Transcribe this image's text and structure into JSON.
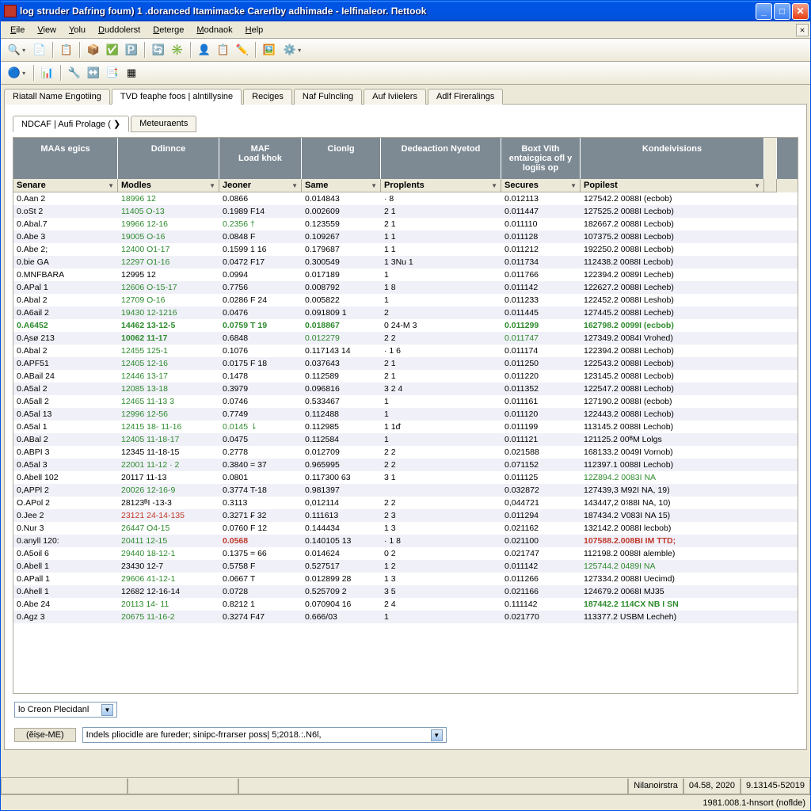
{
  "window": {
    "title": "log struder Dafring foum) 1 .doranced Itamimacke CarerIby adhimade - Ielfinaleor. Пеttоok"
  },
  "menu": {
    "items": [
      "Eile",
      "View",
      "Yolu",
      "Duddolerst",
      "Deterge",
      "Modnaok",
      "Help"
    ]
  },
  "toolbars": {
    "row1_icons": [
      "🔍",
      "📄",
      "·",
      "📋",
      "·",
      "📦",
      "✅",
      "🅿️",
      "·",
      "🔄",
      "✳️",
      "·",
      "👤",
      "📋",
      "✏️",
      "·",
      "🖼️",
      "⚙️"
    ],
    "row2_icons": [
      "🔵",
      "·",
      "📊",
      "·",
      "🔧",
      "↔️",
      "📑",
      "▦"
    ]
  },
  "tabs": {
    "main": [
      {
        "label": "Riatall Name Engotiing",
        "active": false
      },
      {
        "label": "TVD feaphe foos | alntillysine",
        "active": true
      },
      {
        "label": "Reciges",
        "active": false
      },
      {
        "label": "Naf Fulncling",
        "active": false
      },
      {
        "label": "Auf Iviielers",
        "active": false
      },
      {
        "label": "Adlf Fireralings",
        "active": false
      }
    ],
    "sub": [
      {
        "label": "NDCAF | Aufi Prolage  ( ❯",
        "active": true
      },
      {
        "label": "Meteuraents",
        "active": false
      }
    ]
  },
  "grid": {
    "group_headers": [
      "MAAs egics",
      "Ddinnce",
      "MAF\nLoad khok",
      "Cionlg",
      "Dedeaction Nyetod",
      "Boxt Vith entaicgica ofl y logiis op",
      "Kondeivisions"
    ],
    "col_headers": [
      "Senare",
      "Modles",
      "Jeoner",
      "Same",
      "Proplents",
      "Secures",
      "Popilest"
    ],
    "rows": [
      {
        "c": [
          "0.Aan 2",
          "18996 12",
          "0.0866",
          "0.014843",
          "·              8",
          "0.012113",
          "127542.2 0088I (ecbob)"
        ],
        "s": [
          "",
          "green",
          "",
          "",
          "",
          "",
          ""
        ]
      },
      {
        "c": [
          "0.oSt  2",
          "11405 O-13",
          "0.1989  F14",
          "0.002609",
          "2             1",
          "0.011447",
          "127525.2 0088I Lecbob)"
        ],
        "s": [
          "",
          "green",
          "",
          "",
          "",
          "",
          ""
        ]
      },
      {
        "c": [
          "0.Abal.7",
          "19966 12-16",
          "0.2356  †",
          "0.123559",
          "2             1",
          "0.011110",
          "182667.2 0088I Lecbob)"
        ],
        "s": [
          "",
          "green",
          "green",
          "",
          "",
          "",
          ""
        ]
      },
      {
        "c": [
          "0.Abe  3",
          "19005 O-16",
          "0.0848  F",
          "0.109267",
          "1             1",
          "0.011128",
          "107375.2 0088I Lecbob)"
        ],
        "s": [
          "",
          "green",
          "",
          "",
          "",
          "",
          ""
        ]
      },
      {
        "c": [
          "0.Abe  2;",
          "12400 O1-17",
          "0.1599  1 16",
          "0.179687",
          "1             1",
          "0.011212",
          "192250.2 0088I Lecbob)"
        ],
        "s": [
          "",
          "green",
          "",
          "",
          "",
          "",
          ""
        ]
      },
      {
        "c": [
          "0.bie  GA",
          "12297 O1-16",
          "0.0472  F17",
          "0.300549",
          "1    3Nu   1",
          "0.011734",
          "112438.2 0088I Lecbob)"
        ],
        "s": [
          "",
          "green",
          "",
          "",
          "",
          "",
          ""
        ]
      },
      {
        "c": [
          "0.MNFBARA",
          "12995 12",
          "0.0994",
          "0.017189",
          "              1",
          "0.011766",
          "122394.2 0089I Lecheb)"
        ],
        "s": [
          "",
          "",
          "",
          "",
          "",
          "",
          ""
        ]
      },
      {
        "c": [
          "0.APal 1",
          "12606 O-15-17",
          "0.7756",
          "0.008792",
          "            1  8",
          "0.011142",
          "122627.2 0088I Lecheb)"
        ],
        "s": [
          "",
          "green",
          "",
          "",
          "",
          "",
          ""
        ]
      },
      {
        "c": [
          "0.Abal 2",
          "12709 O-16",
          "0.0286  F 24",
          "0.005822",
          "              1",
          "0.011233",
          "122452.2 0088I Leshob)"
        ],
        "s": [
          "",
          "green",
          "",
          "",
          "",
          "",
          ""
        ]
      },
      {
        "c": [
          "0.A6ail 2",
          "19430 12-1216",
          "0.0476",
          "0.091809  1",
          "              2",
          "0.011445",
          "127445.2 0088I Lecheb)"
        ],
        "s": [
          "",
          "green",
          "",
          "",
          "",
          "",
          ""
        ]
      },
      {
        "c": [
          "0.A6452",
          "14462 13-12-5",
          "0.0759  T 19",
          "0.018867",
          "0    24-M  3",
          "0.011299",
          "162798.2 0099I (ecbob)"
        ],
        "s": [
          "bold green",
          "bold green",
          "bold green",
          "bold green",
          "",
          "bold green",
          "bold green"
        ]
      },
      {
        "c": [
          "0.Ąsø 213",
          "10062 11-17",
          "0.6848",
          "0.012279",
          "2             2",
          "0.011747",
          "127349.2 0084I Vrohed)"
        ],
        "s": [
          "",
          "bold green",
          "",
          "green",
          "",
          "green",
          ""
        ]
      },
      {
        "c": [
          "0.Abal 2",
          "12455 125-1",
          "0.1076",
          "0.117143  14",
          "·           1  6",
          "0.011174",
          "122394.2 0088I Lechob)"
        ],
        "s": [
          "",
          "green",
          "",
          "",
          "",
          "",
          ""
        ]
      },
      {
        "c": [
          "0.APF51",
          "12405 12-16",
          "0.0175  F 18",
          "0.037643",
          "2             1",
          "0.011250",
          "122543.2 0088I Lecbob)"
        ],
        "s": [
          "",
          "green",
          "",
          "",
          "",
          "",
          ""
        ]
      },
      {
        "c": [
          "0.ABail 24",
          "12446 13-17",
          "0.1478",
          "0.112589",
          "2             1",
          "0.011220",
          "123145.2 0088I Lecbob)"
        ],
        "s": [
          "",
          "green",
          "",
          "",
          "",
          "",
          ""
        ]
      },
      {
        "c": [
          "0.A5al 2",
          "12085 13-18",
          "0.3979",
          "0.096816",
          "3           2  4",
          "0.011352",
          "122547.2 0088I Lechob)"
        ],
        "s": [
          "",
          "green",
          "",
          "",
          "",
          "",
          ""
        ]
      },
      {
        "c": [
          "0.A5all 2",
          "12465 11-13  3",
          "0.0746",
          "0.533467",
          "              1",
          "0.011161",
          "127190.2 0088I (ecbob)"
        ],
        "s": [
          "",
          "green",
          "",
          "",
          "",
          "",
          ""
        ]
      },
      {
        "c": [
          "0.A5al 13",
          "12996 12-56",
          "0.7749",
          "0.112488",
          "              1",
          "0.011120",
          "122443.2 0088I Lechob)"
        ],
        "s": [
          "",
          "green",
          "",
          "",
          "",
          "",
          ""
        ]
      },
      {
        "c": [
          "0.A5al 1",
          "12415 18- 11-16",
          "0.0145  ⇂",
          "0.112985",
          "1          1ᵭ",
          "0.011199",
          "113145.2 0088I Lechob)"
        ],
        "s": [
          "",
          "green",
          "green",
          "",
          "",
          "",
          ""
        ]
      },
      {
        "c": [
          "0.ABal 2",
          "12405 11-18-17",
          "0.0475",
          "0.112584",
          "              1",
          "0.011121",
          "121125.2 00ᴮM Lolgs"
        ],
        "s": [
          "",
          "green",
          "",
          "",
          "",
          "",
          ""
        ]
      },
      {
        "c": [
          "0.ABPI 3",
          "12345 11-18-15",
          "0.2778",
          "0.012709",
          "2             2",
          "0.021588",
          "168133.2 0049I Vornob)"
        ],
        "s": [
          "",
          "",
          "",
          "",
          "",
          "",
          ""
        ]
      },
      {
        "c": [
          "0.A5al 3",
          "22001 11-12 · 2",
          "0.3840  = 37",
          "0.965995",
          "2             2",
          "0.071152",
          "112397.1 0088I Lechob)"
        ],
        "s": [
          "",
          "green",
          "",
          "",
          "",
          "",
          ""
        ]
      },
      {
        "c": [
          "0.Abell 102",
          "20117 11-13",
          "0.0801",
          "0.117300  63",
          "3             1",
          "0.011125",
          "12Z894.2 0083I NA"
        ],
        "s": [
          "",
          "",
          "",
          "",
          "",
          "",
          "green"
        ]
      },
      {
        "c": [
          "0,APPl 2",
          "20026 12-16-9",
          "0.3774  T-18",
          "0.981397",
          "",
          "0.032872",
          "127439,3 M92I NA, 19)"
        ],
        "s": [
          "",
          "green",
          "",
          "",
          "",
          "",
          ""
        ]
      },
      {
        "c": [
          "O.APol 2",
          "28123ᴮI -13-3",
          "0.3113",
          "0,012114",
          "2             2",
          "0,044721",
          "143447,2 0ᶾ88I NA, 10)"
        ],
        "s": [
          "",
          "",
          "",
          "",
          "",
          "",
          ""
        ]
      },
      {
        "c": [
          "0.Jee  2",
          "23121 24-14-135",
          "0.3271  ₣ 32",
          "0.111613",
          "2             3",
          "0.011294",
          "187434.2 V083I NA  15)"
        ],
        "s": [
          "",
          "red",
          "",
          "",
          "",
          "",
          ""
        ]
      },
      {
        "c": [
          "0.Nur  3",
          "26447 O4-15",
          "0.0760  F 12",
          "0.144434",
          "1             3",
          "0.021162",
          "132142.2 0088I lecbob)"
        ],
        "s": [
          "",
          "green",
          "",
          "",
          "",
          "",
          ""
        ]
      },
      {
        "c": [
          "0.anyll 120:",
          "20411 12-15",
          "0.0568",
          "0.140105  13",
          "·          1  8",
          "0.021100",
          "107588.2.008BI IM TTD;"
        ],
        "s": [
          "",
          "green",
          "red bold",
          "",
          "",
          "",
          "red bold"
        ]
      },
      {
        "c": [
          "0.A5oil 6",
          "29440 18-12-1",
          "0.1375  = 66",
          "0.014624",
          "0             2",
          "0.021747",
          "112198.2 0088I alemble)"
        ],
        "s": [
          "",
          "green",
          "",
          "",
          "",
          "",
          ""
        ]
      },
      {
        "c": [
          "0.Abell 1",
          "23430 12-7",
          "0.5758  F",
          "0.527517",
          "1             2",
          "0.011142",
          "125744.2 0489I NA"
        ],
        "s": [
          "",
          "",
          "",
          "",
          "",
          "",
          "green"
        ]
      },
      {
        "c": [
          "0.APall 1",
          "29606 41-12-1",
          "0.0667  T",
          "0.012899  28",
          "1             3",
          "0.011266",
          "127334.2 0088I Uecimd)"
        ],
        "s": [
          "",
          "green",
          "",
          "",
          "",
          "",
          ""
        ]
      },
      {
        "c": [
          "0.Ahell 1",
          "12682 12-16-14",
          "0.0728",
          "0.525709  2",
          "3             5",
          "0.021166",
          "124679.2 0068I MJ35"
        ],
        "s": [
          "",
          "",
          "",
          "",
          "",
          "",
          ""
        ]
      },
      {
        "c": [
          "0.Abe  24",
          "20113 14- 11",
          "0.8212  1",
          "0.070904  16",
          "2             4",
          "0.111142",
          "187442.2 114CX NB I SN"
        ],
        "s": [
          "",
          "green",
          "",
          "",
          "",
          "",
          "bold green"
        ]
      },
      {
        "c": [
          "0.Agz  3",
          "20675 11-16-2",
          "0.3274  F47",
          "0.666/03",
          "              1",
          "0.021770",
          "113377.2 USBM Lecheh)"
        ],
        "s": [
          "",
          "green",
          "",
          "",
          "",
          "",
          ""
        ]
      }
    ]
  },
  "footer": {
    "combo1": "lo Creon Plecidanl",
    "label": "(ěiṣe-ME)",
    "combo2": "Indels pliocidle are fureder; sinipc-frrarser poss| 5;2018.:.N6l,"
  },
  "statusbar": {
    "pane1": "Nilanoirstra",
    "pane2": "04.58, 2020",
    "pane3": "9.13145-52019",
    "line2": "1981.008.1-hnsort (noflde)"
  },
  "colors": {
    "group_header_bg": "#7d8a94",
    "titlebar_start": "#3a93ff",
    "titlebar_end": "#0054e3",
    "bg": "#ece9d8",
    "border": "#aca899",
    "green": "#2e8b2e",
    "red": "#c0392b"
  }
}
